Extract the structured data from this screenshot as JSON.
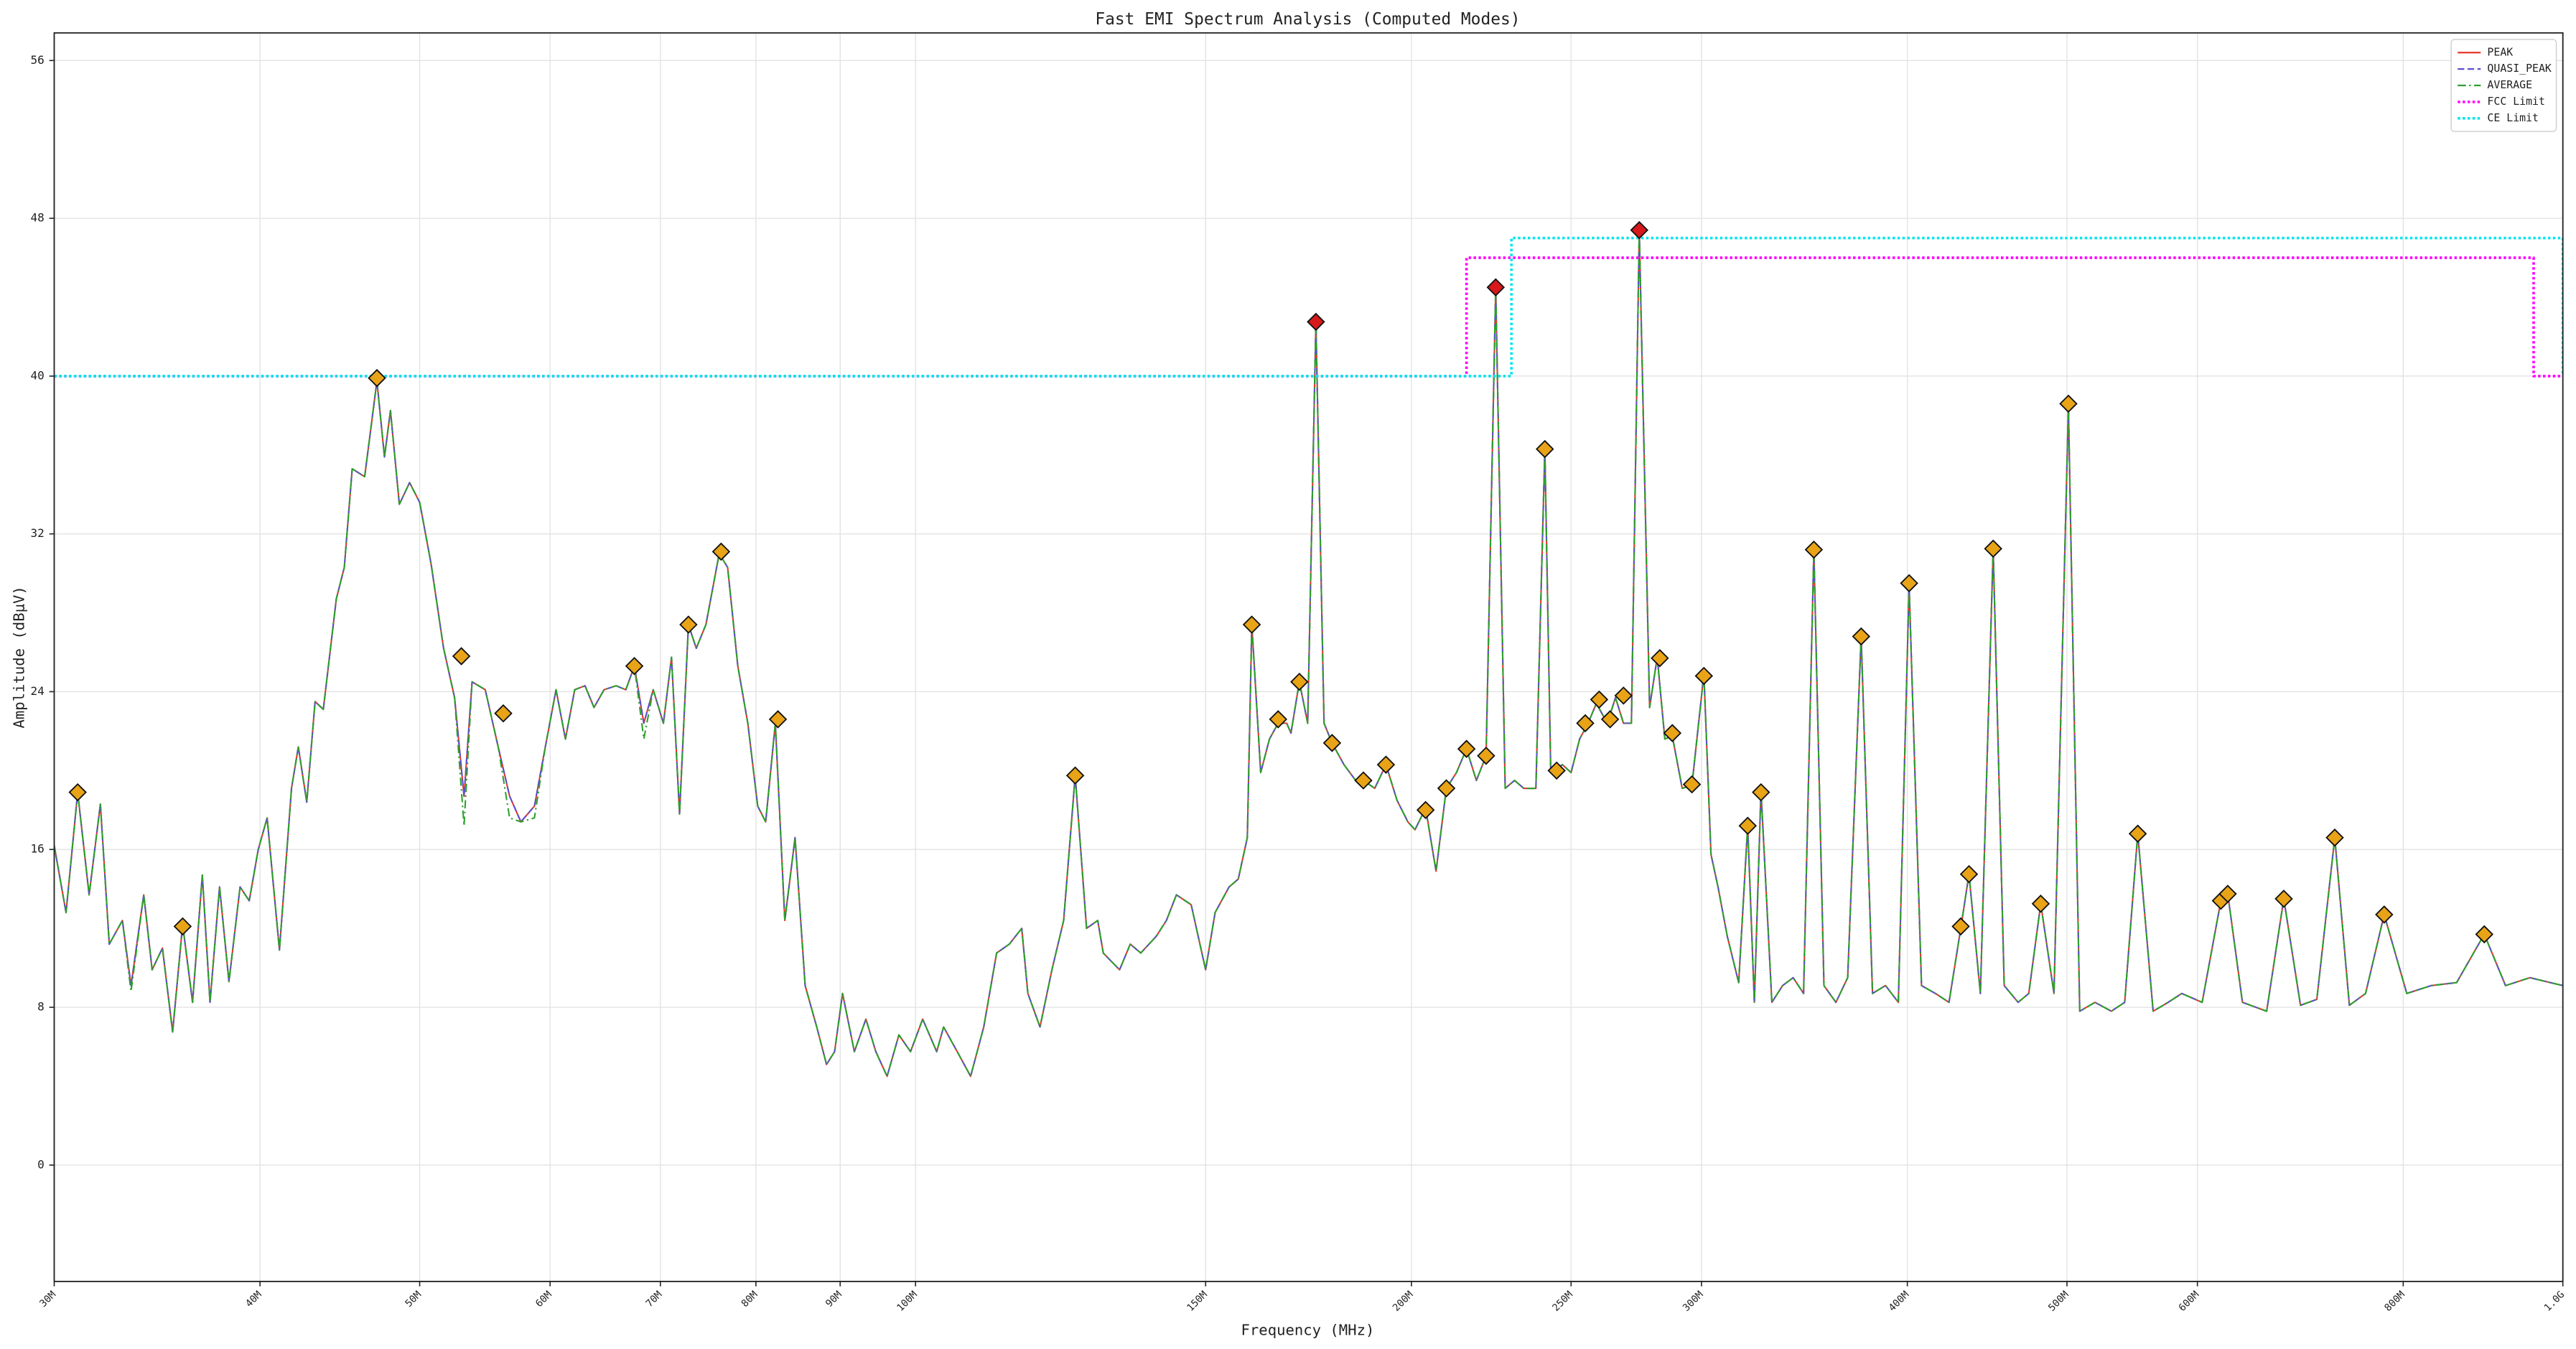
{
  "chart_data": {
    "type": "line",
    "title": "Fast EMI Spectrum Analysis (Computed Modes)",
    "x_label": "Frequency (MHz)",
    "y_label": "Amplitude (dBμV)",
    "xscale": "log",
    "grid": true,
    "legend_position": "upper right",
    "xlim": [
      30,
      1000
    ],
    "ylim": [
      -5.9,
      57.4
    ],
    "xticks": [
      {
        "value": 30,
        "label": "30M"
      },
      {
        "value": 40,
        "label": "40M"
      },
      {
        "value": 50,
        "label": "50M"
      },
      {
        "value": 60,
        "label": "60M"
      },
      {
        "value": 70,
        "label": "70M"
      },
      {
        "value": 80,
        "label": "80M"
      },
      {
        "value": 90,
        "label": "90M"
      },
      {
        "value": 100,
        "label": "100M"
      },
      {
        "value": 150,
        "label": "150M"
      },
      {
        "value": 200,
        "label": "200M"
      },
      {
        "value": 250,
        "label": "250M"
      },
      {
        "value": 300,
        "label": "300M"
      },
      {
        "value": 400,
        "label": "400M"
      },
      {
        "value": 500,
        "label": "500M"
      },
      {
        "value": 600,
        "label": "600M"
      },
      {
        "value": 800,
        "label": "800M"
      },
      {
        "value": 1000,
        "label": "1.0G"
      }
    ],
    "yticks": [
      0,
      8,
      16,
      24,
      32,
      40,
      48,
      56
    ],
    "x": [
      30.0,
      30.5,
      31.0,
      31.5,
      32.0,
      32.4,
      33.0,
      33.4,
      34.0,
      34.4,
      34.9,
      35.4,
      35.9,
      36.4,
      36.9,
      37.3,
      37.8,
      38.3,
      38.9,
      39.4,
      39.9,
      40.4,
      41.1,
      41.8,
      42.2,
      42.7,
      43.2,
      43.7,
      44.5,
      45.0,
      45.5,
      46.3,
      47.1,
      47.6,
      48.0,
      48.6,
      49.3,
      50.0,
      50.8,
      51.7,
      52.5,
      53.2,
      53.8,
      54.8,
      55.8,
      56.7,
      57.6,
      58.7,
      59.6,
      60.5,
      61.3,
      62.1,
      63.0,
      63.8,
      64.7,
      65.8,
      66.7,
      67.5,
      68.4,
      69.3,
      70.3,
      71.1,
      71.9,
      72.8,
      73.6,
      74.6,
      76.0,
      76.9,
      78.0,
      79.1,
      80.2,
      81.1,
      82.2,
      83.3,
      84.5,
      85.7,
      87.1,
      88.3,
      89.3,
      90.3,
      91.8,
      93.3,
      94.6,
      96.1,
      97.7,
      99.3,
      101,
      103,
      104,
      106,
      108,
      110,
      112,
      114,
      116,
      117,
      119,
      121,
      123,
      125,
      127,
      129,
      130,
      133,
      135,
      137,
      140,
      142,
      144,
      147,
      150,
      152,
      155,
      157,
      159,
      160,
      162,
      164,
      166,
      168,
      169,
      171,
      173,
      175,
      177,
      179,
      182,
      185,
      187,
      190,
      193,
      196,
      199,
      201,
      204,
      207,
      210,
      213,
      216,
      219,
      222,
      225,
      228,
      231,
      234,
      238,
      241,
      243,
      247,
      250,
      253,
      256,
      259,
      263,
      266,
      269,
      272,
      275,
      279,
      282,
      285,
      288,
      292,
      296,
      301,
      304,
      307,
      311,
      316,
      320,
      323,
      326,
      331,
      336,
      341,
      346,
      351,
      356,
      362,
      368,
      375,
      381,
      388,
      395,
      401,
      408,
      416,
      424,
      431,
      436,
      443,
      451,
      458,
      467,
      474,
      482,
      491,
      501,
      509,
      520,
      532,
      542,
      552,
      564,
      576,
      587,
      604,
      620,
      626,
      639,
      661,
      677,
      693,
      709,
      727,
      742,
      759,
      779,
      804,
      832,
      862,
      896,
      923,
      955,
      1000
    ],
    "series": [
      {
        "name": "PEAK",
        "color": "#e8352a",
        "style": "solid",
        "values": [
          16.2,
          12.8,
          18.9,
          13.7,
          18.3,
          11.2,
          12.4,
          9.1,
          13.7,
          9.9,
          11,
          6.75,
          12.2,
          8.25,
          14.7,
          8.25,
          14.1,
          9.3,
          14.1,
          13.4,
          16,
          17.6,
          10.9,
          19.1,
          21.2,
          18.4,
          23.5,
          23.1,
          28.7,
          30.3,
          35.3,
          34.9,
          39.75,
          35.9,
          38.25,
          33.5,
          34.6,
          33.6,
          30.5,
          26.2,
          23.7,
          18.7,
          24.5,
          24.1,
          21.2,
          18.7,
          17.4,
          18.2,
          21.2,
          24.1,
          21.6,
          24.1,
          24.3,
          23.2,
          24.1,
          24.3,
          24.1,
          25.3,
          22.4,
          24.1,
          22.4,
          25.75,
          17.8,
          27.4,
          26.2,
          27.4,
          31,
          30.3,
          25.3,
          22.4,
          18.2,
          17.4,
          22.4,
          12.4,
          16.6,
          9.1,
          7,
          5.1,
          5.75,
          8.7,
          5.75,
          7.4,
          5.75,
          4.5,
          6.6,
          5.75,
          7.4,
          5.75,
          7,
          5.75,
          4.5,
          7,
          10.75,
          11.2,
          12,
          8.7,
          7,
          9.9,
          12.4,
          19.75,
          12,
          12.4,
          10.75,
          9.9,
          11.2,
          10.75,
          11.6,
          12.4,
          13.7,
          13.2,
          9.9,
          12.8,
          14.1,
          14.5,
          16.6,
          27.4,
          19.9,
          21.6,
          22.4,
          22.4,
          21.9,
          24.5,
          22.4,
          42.75,
          22.4,
          21.4,
          20.3,
          19.5,
          19.5,
          19.1,
          20.3,
          18.5,
          17.4,
          17,
          18.1,
          14.9,
          19.1,
          19.9,
          21.1,
          19.5,
          20.75,
          44.5,
          19.1,
          19.5,
          19.1,
          19.1,
          36.3,
          19.9,
          20.3,
          19.9,
          21.6,
          22.4,
          23.4,
          22.4,
          23.7,
          22.4,
          22.4,
          47.4,
          23.2,
          25.75,
          21.6,
          21.75,
          19.1,
          19.25,
          24.9,
          15.75,
          14.1,
          11.6,
          9.25,
          17.2,
          8.25,
          19,
          8.25,
          9.1,
          9.5,
          8.7,
          31.2,
          9.1,
          8.25,
          9.5,
          26.8,
          8.7,
          9.1,
          8.25,
          29.4,
          9.1,
          8.7,
          8.25,
          12,
          14.75,
          8.7,
          31.25,
          9.1,
          8.25,
          8.7,
          13.25,
          8.7,
          38.5,
          7.8,
          8.25,
          7.8,
          8.25,
          16.8,
          7.8,
          8.25,
          8.7,
          8.25,
          13.4,
          13.75,
          8.25,
          7.8,
          13.5,
          8.1,
          8.4,
          16.6,
          8.1,
          8.7,
          12.7,
          8.7,
          9.1,
          9.25,
          11.7,
          9.1,
          9.5,
          9.1
        ]
      },
      {
        "name": "QUASI_PEAK",
        "color": "#5b4fcf",
        "style": "dashed",
        "values": [
          16.2,
          12.8,
          18.9,
          13.7,
          18.3,
          11.2,
          12.4,
          9.1,
          13.7,
          9.9,
          11,
          6.75,
          12.2,
          8.25,
          14.7,
          8.25,
          14.1,
          9.3,
          14.1,
          13.4,
          16,
          17.6,
          10.9,
          19.1,
          21.2,
          18.4,
          23.5,
          23.1,
          28.7,
          30.3,
          35.3,
          34.9,
          39.75,
          35.9,
          38.25,
          33.5,
          34.6,
          33.6,
          30.5,
          26.2,
          23.7,
          18.7,
          24.5,
          24.1,
          21.2,
          18.7,
          17.4,
          18.2,
          21.2,
          24.1,
          21.6,
          24.1,
          24.3,
          23.2,
          24.1,
          24.3,
          24.1,
          25.3,
          22.4,
          24.1,
          22.4,
          25.75,
          17.8,
          27.4,
          26.2,
          27.4,
          31,
          30.3,
          25.3,
          22.4,
          18.2,
          17.4,
          22.4,
          12.4,
          16.6,
          9.1,
          7,
          5.1,
          5.75,
          8.7,
          5.75,
          7.4,
          5.75,
          4.5,
          6.6,
          5.75,
          7.4,
          5.75,
          7,
          5.75,
          4.5,
          7,
          10.75,
          11.2,
          12,
          8.7,
          7,
          9.9,
          12.4,
          19.75,
          12,
          12.4,
          10.75,
          9.9,
          11.2,
          10.75,
          11.6,
          12.4,
          13.7,
          13.2,
          9.9,
          12.8,
          14.1,
          14.5,
          16.6,
          27.4,
          19.9,
          21.6,
          22.4,
          22.4,
          21.9,
          24.5,
          22.4,
          42.75,
          22.4,
          21.4,
          20.3,
          19.5,
          19.5,
          19.1,
          20.3,
          18.5,
          17.4,
          17,
          18.1,
          14.9,
          19.1,
          19.9,
          21.1,
          19.5,
          20.75,
          44.5,
          19.1,
          19.5,
          19.1,
          19.1,
          36.3,
          19.9,
          20.3,
          19.9,
          21.6,
          22.4,
          23.4,
          22.4,
          23.7,
          22.4,
          22.4,
          47.4,
          23.2,
          25.75,
          21.6,
          21.75,
          19.1,
          19.25,
          24.9,
          15.75,
          14.1,
          11.6,
          9.25,
          17.2,
          8.25,
          19,
          8.25,
          9.1,
          9.5,
          8.7,
          31.2,
          9.1,
          8.25,
          9.5,
          26.8,
          8.7,
          9.1,
          8.25,
          29.4,
          9.1,
          8.7,
          8.25,
          12,
          14.75,
          8.7,
          31.25,
          9.1,
          8.25,
          8.7,
          13.25,
          8.7,
          38.5,
          7.8,
          8.25,
          7.8,
          8.25,
          16.8,
          7.8,
          8.25,
          8.7,
          8.25,
          13.4,
          13.75,
          8.25,
          7.8,
          13.5,
          8.1,
          8.4,
          16.6,
          8.1,
          8.7,
          12.7,
          8.7,
          9.1,
          9.25,
          11.7,
          9.1,
          9.5,
          9.1
        ]
      },
      {
        "name": "AVERAGE",
        "color": "#2ca02c",
        "style": "dashdot",
        "values": [
          16.2,
          12.8,
          18.9,
          13.7,
          18.3,
          11.2,
          12.4,
          8.8,
          13.7,
          9.9,
          11,
          6.75,
          12.2,
          8.25,
          14.7,
          8.25,
          14.1,
          9.3,
          14.1,
          13.4,
          16,
          17.6,
          10.9,
          19.1,
          21.2,
          18.4,
          23.5,
          23.1,
          28.7,
          30.3,
          35.3,
          34.9,
          39.75,
          35.9,
          38.25,
          33.5,
          34.6,
          33.6,
          30.5,
          26.2,
          23.7,
          17.2,
          24.5,
          24.1,
          21.2,
          17.6,
          17.4,
          17.6,
          21.2,
          24.1,
          21.6,
          24.1,
          24.3,
          23.2,
          24.1,
          24.3,
          24.1,
          25.3,
          21.6,
          24.1,
          22.4,
          25.75,
          17.8,
          27.4,
          26.2,
          27.4,
          31,
          30.3,
          25.3,
          22.4,
          18.2,
          17.4,
          22.4,
          12.4,
          16.6,
          9.1,
          7,
          5.1,
          5.75,
          8.7,
          5.75,
          7.4,
          5.75,
          4.5,
          6.6,
          5.75,
          7.4,
          5.75,
          7,
          5.75,
          4.5,
          7,
          10.75,
          11.2,
          12,
          8.7,
          7,
          9.9,
          12.4,
          19.75,
          12,
          12.4,
          10.75,
          9.9,
          11.2,
          10.75,
          11.6,
          12.4,
          13.7,
          13.2,
          9.9,
          12.8,
          14.1,
          14.5,
          16.6,
          27.4,
          19.9,
          21.6,
          22.4,
          22.4,
          21.9,
          24.5,
          22.4,
          42.75,
          22.4,
          21.4,
          20.3,
          19.5,
          19.5,
          19.1,
          20.3,
          18.5,
          17.4,
          17,
          18.1,
          14.9,
          19.1,
          19.9,
          21.1,
          19.5,
          20.75,
          44.5,
          19.1,
          19.5,
          19.1,
          19.1,
          36.3,
          19.9,
          20.3,
          19.9,
          21.6,
          22.4,
          23.4,
          22.4,
          23.7,
          22.4,
          22.4,
          47.4,
          23.2,
          25.75,
          21.6,
          21.75,
          19.1,
          19.25,
          24.9,
          15.75,
          14.1,
          11.6,
          9.25,
          17.2,
          8.25,
          19,
          8.25,
          9.1,
          9.5,
          8.7,
          31.2,
          9.1,
          8.25,
          9.5,
          26.8,
          8.7,
          9.1,
          8.25,
          29.4,
          9.1,
          8.7,
          8.25,
          12,
          14.75,
          8.7,
          31.25,
          9.1,
          8.25,
          8.7,
          13.25,
          8.7,
          38.5,
          7.8,
          8.25,
          7.8,
          8.25,
          16.8,
          7.8,
          8.25,
          8.7,
          8.25,
          13.4,
          13.75,
          8.25,
          7.8,
          13.5,
          8.1,
          8.4,
          16.6,
          8.1,
          8.7,
          12.7,
          8.7,
          9.1,
          9.25,
          11.7,
          9.1,
          9.5,
          9.1
        ]
      },
      {
        "name": "FCC Limit",
        "color": "#ff00ff",
        "style": "dotted",
        "x": [
          30,
          216,
          216,
          960,
          960,
          1000
        ],
        "values": [
          40,
          40,
          46,
          46,
          40,
          40
        ]
      },
      {
        "name": "CE Limit",
        "color": "#00e5ee",
        "style": "dotted",
        "x": [
          30,
          230,
          230,
          1000,
          1000
        ],
        "values": [
          40,
          40,
          47,
          47,
          40
        ]
      }
    ],
    "peaks": {
      "color": "#e8a317",
      "x": [
        31.0,
        35.9,
        47.1,
        53.0,
        56.2,
        67.5,
        72.8,
        76.2,
        82.5,
        125,
        160,
        166,
        171,
        179,
        187,
        193,
        204,
        210,
        216,
        222,
        241,
        245,
        255,
        260,
        264,
        269,
        283,
        288,
        296,
        301,
        320,
        326,
        351,
        375,
        401,
        431,
        436,
        451,
        482,
        501,
        552,
        620,
        626,
        677,
        727,
        779,
        896
      ],
      "values": [
        18.9,
        12.1,
        39.9,
        25.8,
        22.9,
        25.3,
        27.4,
        31.1,
        22.6,
        19.75,
        27.4,
        22.6,
        24.5,
        21.4,
        19.5,
        20.3,
        18,
        19.1,
        21.1,
        20.75,
        36.3,
        20,
        22.4,
        23.6,
        22.6,
        23.8,
        25.7,
        21.9,
        19.3,
        24.8,
        17.2,
        18.9,
        31.2,
        26.8,
        29.5,
        12.1,
        14.75,
        31.25,
        13.25,
        38.6,
        16.8,
        13.4,
        13.75,
        13.5,
        16.6,
        12.7,
        11.7
      ]
    },
    "violations": {
      "color": "#d7191c",
      "x": [
        175,
        225,
        275
      ],
      "values": [
        42.75,
        44.5,
        47.4
      ]
    }
  }
}
